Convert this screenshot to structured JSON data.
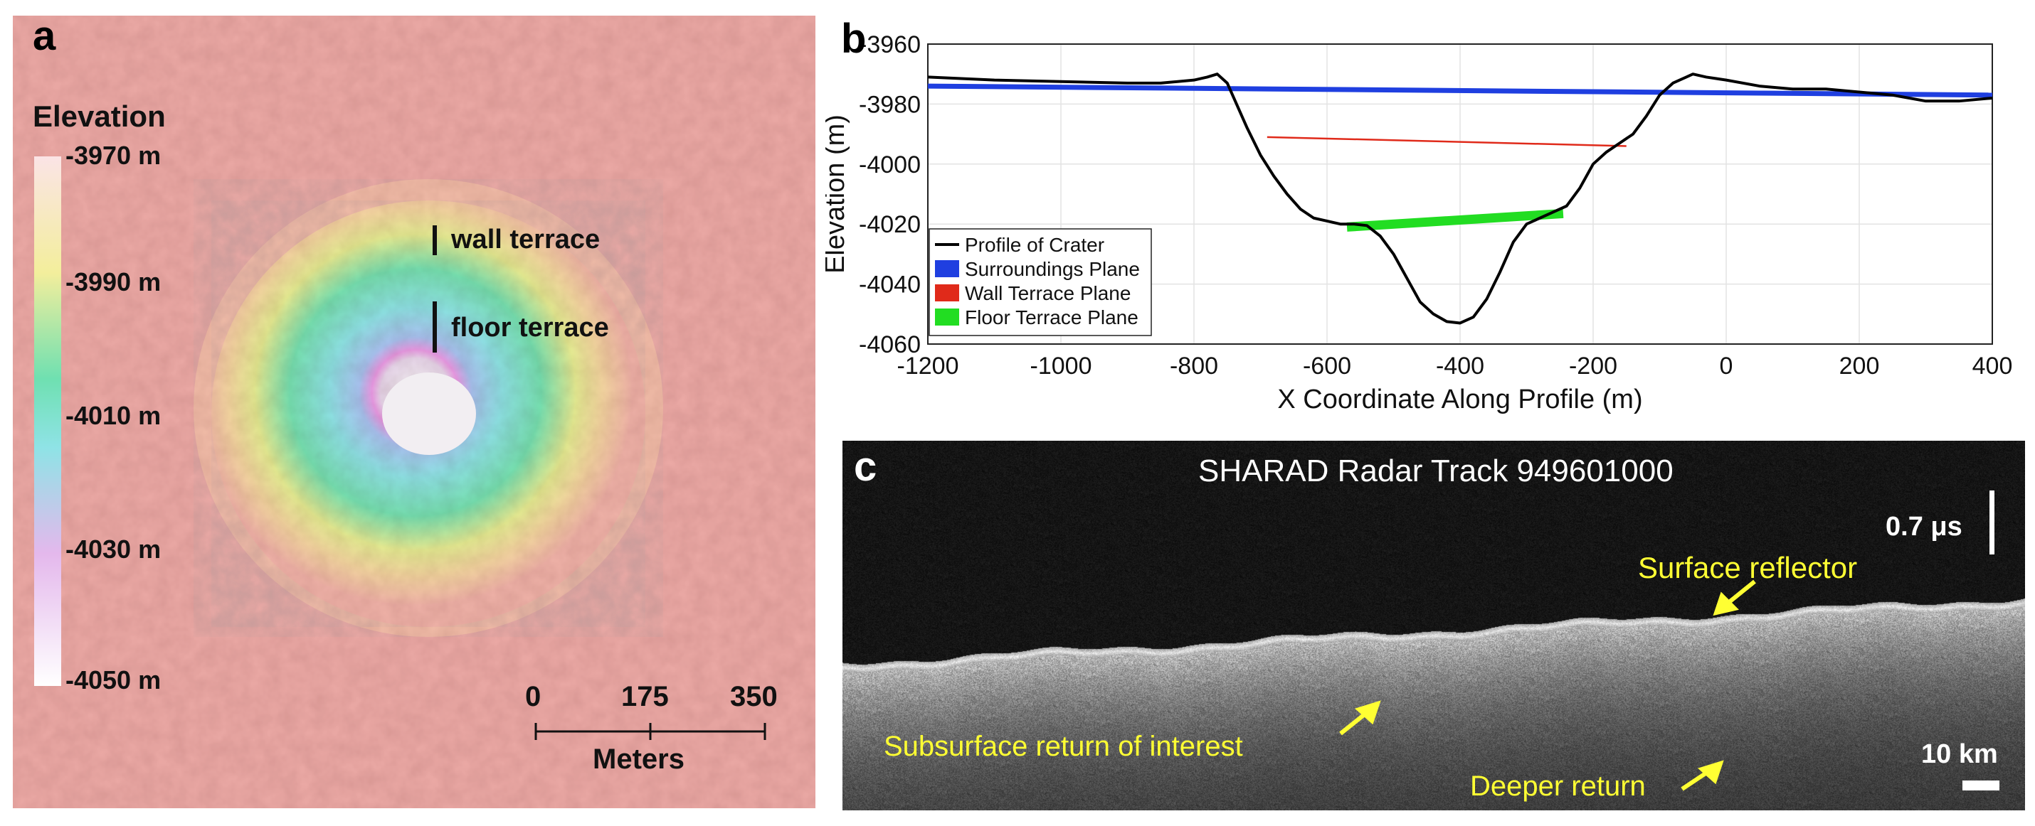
{
  "panel_a": {
    "letter": "a",
    "colorbar_title": "Elevation",
    "colorbar_ticks": [
      "-3970 m",
      "-3990 m",
      "-4010 m",
      "-4030 m",
      "-4050 m"
    ],
    "annotations": {
      "wall": "wall terrace",
      "floor": "floor terrace"
    },
    "scalebar": {
      "ticks": [
        "0",
        "175",
        "350"
      ],
      "unit": "Meters"
    },
    "colors": {
      "background": "#ecaaa6",
      "ramp": [
        "#fbe4e6",
        "#f5ee9a",
        "#6fe2b4",
        "#8fe3e6",
        "#e9a6ec",
        "#ffffff"
      ]
    }
  },
  "panel_b": {
    "letter": "b",
    "chart_data": {
      "type": "line",
      "xlabel": "X Coordinate Along Profile (m)",
      "ylabel": "Elevation (m)",
      "xlim": [
        -1200,
        400
      ],
      "ylim": [
        -4060,
        -3960
      ],
      "xticks": [
        -1200,
        -1000,
        -800,
        -600,
        -400,
        -200,
        0,
        200,
        400
      ],
      "yticks": [
        -3960,
        -3980,
        -4000,
        -4020,
        -4040,
        -4060
      ],
      "grid": true,
      "legend_position": "bottom-left",
      "series": [
        {
          "name": "Profile of Crater",
          "color": "#000000",
          "x": [
            -1200,
            -1100,
            -1000,
            -900,
            -850,
            -800,
            -780,
            -765,
            -750,
            -740,
            -720,
            -700,
            -680,
            -660,
            -640,
            -620,
            -600,
            -580,
            -560,
            -540,
            -520,
            -500,
            -480,
            -460,
            -440,
            -420,
            -400,
            -380,
            -360,
            -340,
            -320,
            -300,
            -280,
            -260,
            -240,
            -220,
            -200,
            -180,
            -160,
            -140,
            -120,
            -100,
            -80,
            -60,
            -50,
            -30,
            0,
            50,
            100,
            150,
            200,
            250,
            300,
            350,
            400
          ],
          "y": [
            -3971,
            -3972,
            -3972.5,
            -3973,
            -3973,
            -3972,
            -3971,
            -3970,
            -3973,
            -3978,
            -3988,
            -3997,
            -4004,
            -4010,
            -4015,
            -4018,
            -4019,
            -4020,
            -4020,
            -4020.5,
            -4024,
            -4030,
            -4038,
            -4046,
            -4050,
            -4052.5,
            -4053,
            -4051,
            -4045,
            -4036,
            -4026,
            -4020,
            -4018,
            -4016,
            -4014,
            -4008,
            -4000,
            -3996,
            -3993,
            -3990,
            -3984,
            -3977,
            -3973,
            -3971,
            -3970,
            -3971,
            -3972,
            -3974,
            -3975,
            -3975,
            -3976,
            -3977,
            -3979,
            -3979,
            -3978
          ]
        },
        {
          "name": "Surroundings Plane",
          "color": "#1f3fe0",
          "x": [
            -1200,
            400
          ],
          "y": [
            -3974,
            -3977
          ]
        },
        {
          "name": "Wall Terrace Plane",
          "color": "#e02a1a",
          "x": [
            -690,
            -150
          ],
          "y": [
            -3991,
            -3994
          ]
        },
        {
          "name": "Floor Terrace Plane",
          "color": "#22dd22",
          "x": [
            -570,
            -245
          ],
          "y": [
            -4021,
            -4016.5
          ]
        }
      ]
    }
  },
  "panel_c": {
    "letter": "c",
    "title": "SHARAD Radar Track 949601000",
    "time_scale": "0.7 μs",
    "distance_scale": "10 km",
    "labels": {
      "surface": "Surface reflector",
      "subsurface": "Subsurface return of interest",
      "deeper": "Deeper return"
    },
    "label_color": "#ffff33"
  }
}
